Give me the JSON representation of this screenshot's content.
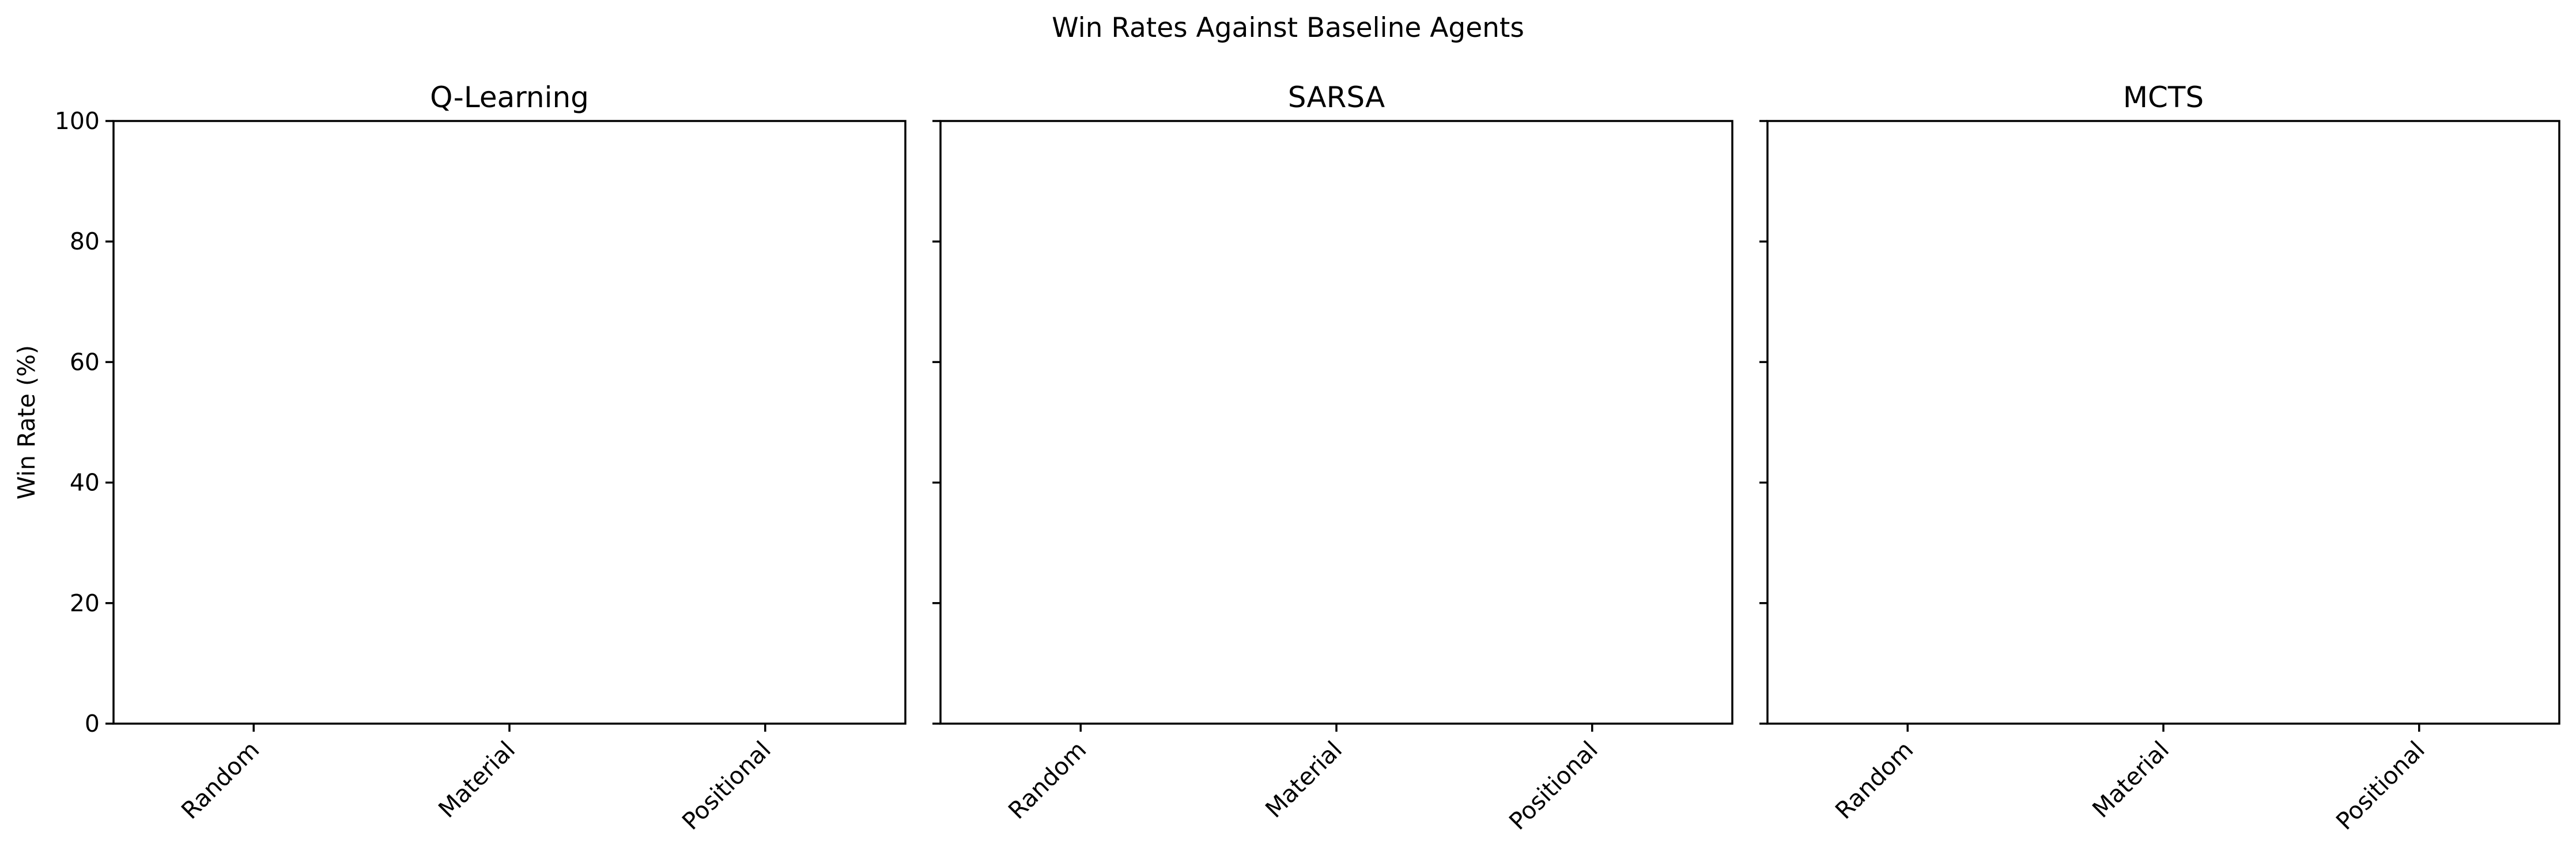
{
  "chart_data": {
    "type": "bar",
    "title": "Win Rates Against Baseline Agents",
    "ylabel": "Win Rate (%)",
    "ylim": [
      0,
      100
    ],
    "yticks": [
      0,
      20,
      40,
      60,
      80,
      100
    ],
    "shared_y": true,
    "grid": false,
    "legend": "none",
    "categories": [
      "Random",
      "Material",
      "Positional"
    ],
    "panels": [
      {
        "title": "Q-Learning",
        "values": []
      },
      {
        "title": "SARSA",
        "values": []
      },
      {
        "title": "MCTS",
        "values": []
      }
    ]
  }
}
